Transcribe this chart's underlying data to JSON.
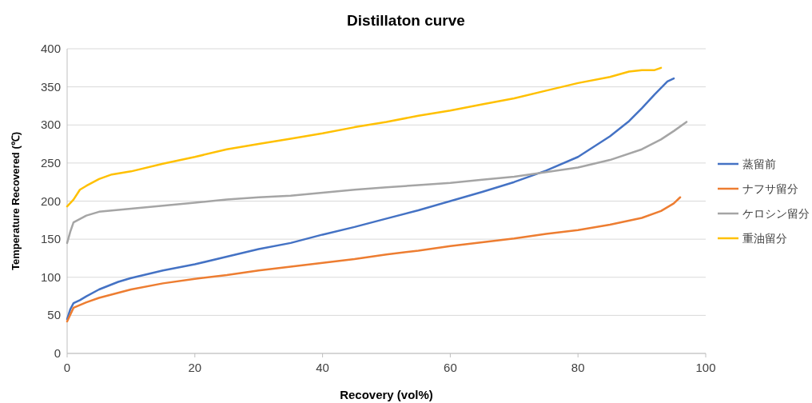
{
  "chart_data": {
    "type": "line",
    "title": "Distillaton curve",
    "xlabel": "Recovery (vol%)",
    "ylabel": "Temperature Recovered (℃)",
    "xlim": [
      0,
      100
    ],
    "xticks": [
      0,
      20,
      40,
      60,
      80,
      100
    ],
    "ylim": [
      0,
      400
    ],
    "yticks": [
      0,
      50,
      100,
      150,
      200,
      250,
      300,
      350,
      400
    ],
    "grid": "y",
    "legend": "right",
    "marker": "none",
    "line_style": "solid",
    "series": [
      {
        "name": "蒸留前",
        "color": "#4472c4",
        "x": [
          0,
          0.5,
          1,
          2,
          3,
          5,
          8,
          10,
          15,
          20,
          25,
          30,
          35,
          40,
          45,
          50,
          55,
          60,
          65,
          70,
          75,
          80,
          85,
          88,
          90,
          92,
          94,
          95
        ],
        "values": [
          45,
          58,
          66,
          70,
          75,
          84,
          94,
          99,
          109,
          117,
          127,
          137,
          145,
          156,
          166,
          177,
          188,
          200,
          212,
          225,
          240,
          258,
          285,
          305,
          322,
          340,
          357,
          361
        ]
      },
      {
        "name": "ナフサ留分",
        "color": "#ed7d31",
        "x": [
          0,
          1,
          3,
          5,
          10,
          15,
          20,
          25,
          30,
          35,
          40,
          45,
          50,
          55,
          60,
          65,
          70,
          75,
          80,
          85,
          90,
          93,
          95,
          96
        ],
        "values": [
          42,
          60,
          67,
          73,
          84,
          92,
          98,
          103,
          109,
          114,
          119,
          124,
          130,
          135,
          141,
          146,
          151,
          157,
          162,
          169,
          178,
          187,
          197,
          205
        ]
      },
      {
        "name": "ケロシン留分",
        "color": "#a5a5a5",
        "x": [
          0,
          0.5,
          1,
          3,
          5,
          10,
          15,
          20,
          25,
          30,
          35,
          40,
          45,
          50,
          55,
          60,
          65,
          70,
          75,
          80,
          85,
          90,
          93,
          95,
          97
        ],
        "values": [
          145,
          160,
          172,
          181,
          186,
          190,
          194,
          198,
          202,
          205,
          207,
          211,
          215,
          218,
          221,
          224,
          228,
          232,
          238,
          244,
          254,
          268,
          281,
          292,
          304
        ]
      },
      {
        "name": "重油留分",
        "color": "#ffc000",
        "x": [
          0,
          1,
          2,
          3,
          5,
          7,
          10,
          15,
          20,
          25,
          30,
          35,
          40,
          45,
          50,
          55,
          60,
          65,
          70,
          75,
          80,
          85,
          88,
          90,
          92,
          93
        ],
        "values": [
          193,
          202,
          215,
          220,
          229,
          235,
          239,
          249,
          258,
          268,
          275,
          282,
          289,
          297,
          304,
          312,
          319,
          327,
          335,
          345,
          355,
          363,
          370,
          372,
          372,
          375
        ]
      }
    ]
  }
}
